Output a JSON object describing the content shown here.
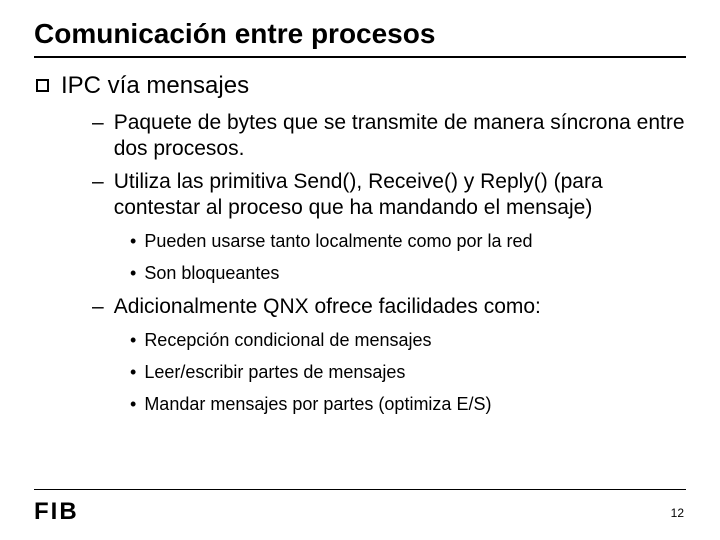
{
  "title": "Comunicación entre procesos",
  "level1": {
    "text": "IPC vía mensajes"
  },
  "level2": {
    "a": "Paquete de bytes que se transmite de manera síncrona entre dos procesos.",
    "b": "Utiliza las primitiva Send(), Receive() y Reply() (para contestar al proceso que ha mandando el mensaje)",
    "c": "Adicionalmente QNX ofrece facilidades como:"
  },
  "level3": {
    "a": "Pueden usarse tanto localmente como por la red",
    "b": "Son bloqueantes",
    "c": "Recepción condicional de mensajes",
    "d": "Leer/escribir partes de mensajes",
    "e": "Mandar mensajes por partes (optimiza E/S)"
  },
  "logo": "FIB",
  "page": "12"
}
